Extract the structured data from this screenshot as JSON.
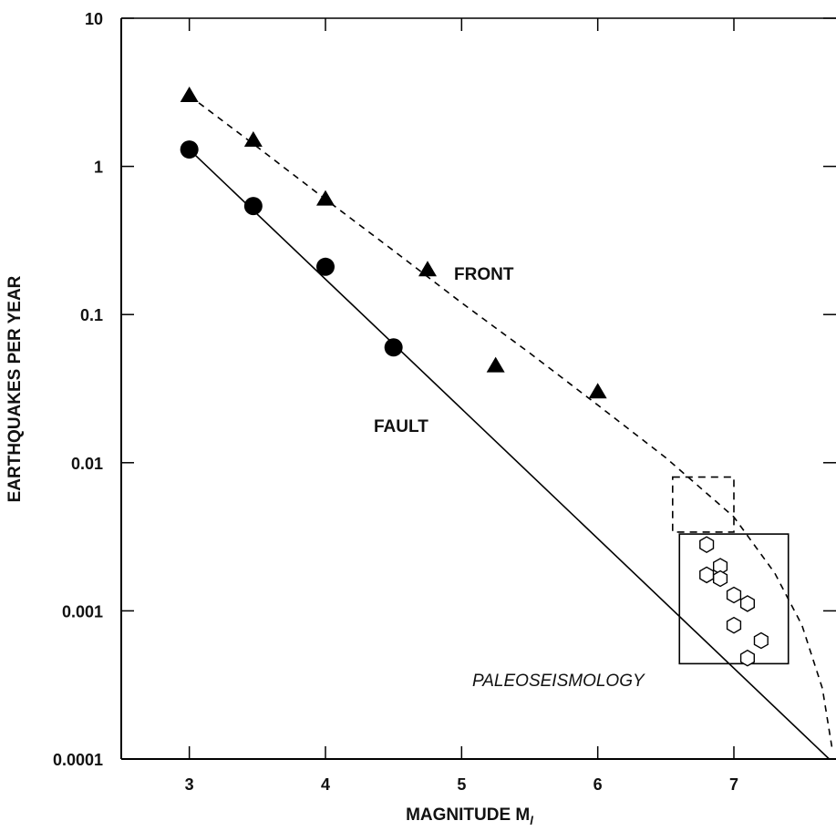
{
  "chart_data": {
    "type": "scatter",
    "xlabel": "MAGNITUDE M",
    "xlabel_subscript": "l",
    "ylabel": "EARTHQUAKES PER YEAR",
    "xlim": [
      2.5,
      7.75
    ],
    "ylim": [
      0.0001,
      10
    ],
    "yscale": "log",
    "grid": false,
    "x_ticks": [
      "3",
      "4",
      "5",
      "6",
      "7"
    ],
    "y_ticks": [
      "0.0001",
      "0.001",
      "0.01",
      "0.1",
      "1",
      "10"
    ],
    "annotations": [
      "FRONT",
      "FAULT",
      "PALEOSEISMOLOGY"
    ],
    "series": [
      {
        "name": "FRONT",
        "marker": "filled-triangle",
        "x": [
          3.0,
          3.47,
          4.0,
          4.75,
          5.25,
          6.0
        ],
        "y": [
          3.0,
          1.5,
          0.6,
          0.2,
          0.045,
          0.03
        ],
        "fit": {
          "style": "dashed",
          "x": [
            3.0,
            3.5,
            4.0,
            4.5,
            5.0,
            5.5,
            6.0,
            6.5,
            7.0,
            7.3,
            7.5,
            7.65,
            7.72
          ],
          "y": [
            3.0,
            1.35,
            0.6,
            0.27,
            0.12,
            0.055,
            0.0245,
            0.0108,
            0.0043,
            0.0018,
            0.0008,
            0.0003,
            0.00012
          ]
        }
      },
      {
        "name": "FAULT",
        "marker": "filled-circle",
        "x": [
          3.0,
          3.47,
          4.0,
          4.5
        ],
        "y": [
          1.3,
          0.54,
          0.21,
          0.06
        ],
        "fit": {
          "style": "solid",
          "x": [
            3.0,
            7.7
          ],
          "y": [
            1.3,
            0.0001
          ]
        }
      },
      {
        "name": "PALEOSEISMOLOGY",
        "marker": "open-hexagon",
        "x": [
          6.8,
          6.8,
          6.9,
          6.9,
          7.0,
          7.1,
          7.0,
          7.2,
          7.1
        ],
        "y": [
          0.0028,
          0.00175,
          0.002,
          0.00165,
          0.00128,
          0.00112,
          0.0008,
          0.00063,
          0.00048
        ]
      }
    ],
    "boxes": [
      {
        "style": "dashed",
        "x": [
          6.55,
          7.0
        ],
        "y": [
          0.0034,
          0.008
        ]
      },
      {
        "style": "solid",
        "x": [
          6.6,
          7.4
        ],
        "y": [
          0.00044,
          0.0033
        ]
      }
    ]
  }
}
